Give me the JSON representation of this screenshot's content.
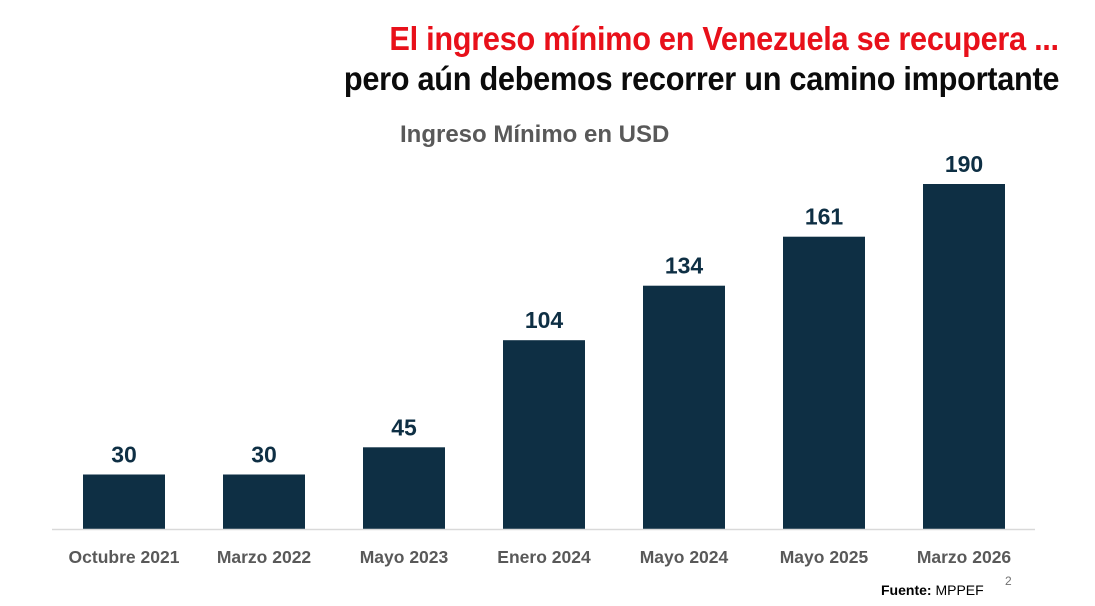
{
  "slide": {
    "headline_line1": "El ingreso mínimo en Venezuela se recupera ...",
    "headline_line2": "pero aún debemos recorrer un camino importante",
    "source_label": "Fuente:",
    "source_value": " MPPEF",
    "page_number": "2"
  },
  "colors": {
    "headline_accent": "#e8101a",
    "bar": "#0e2f44",
    "label": "#0e2f44",
    "axis_text": "#595959",
    "axis_line": "#d9d9d9"
  },
  "chart_data": {
    "type": "bar",
    "title": "Ingreso Mínimo en USD",
    "xlabel": "",
    "ylabel": "",
    "categories": [
      "Octubre 2021",
      "Marzo 2022",
      "Mayo 2023",
      "Enero 2024",
      "Mayo 2024",
      "Mayo 2025",
      "Marzo 2026"
    ],
    "values": [
      30,
      30,
      45,
      104,
      134,
      161,
      190
    ],
    "data_labels": [
      "30",
      "30",
      "45",
      "104",
      "134",
      "161",
      "190"
    ],
    "ylim": [
      0,
      190
    ],
    "grid": false,
    "legend": "none"
  }
}
